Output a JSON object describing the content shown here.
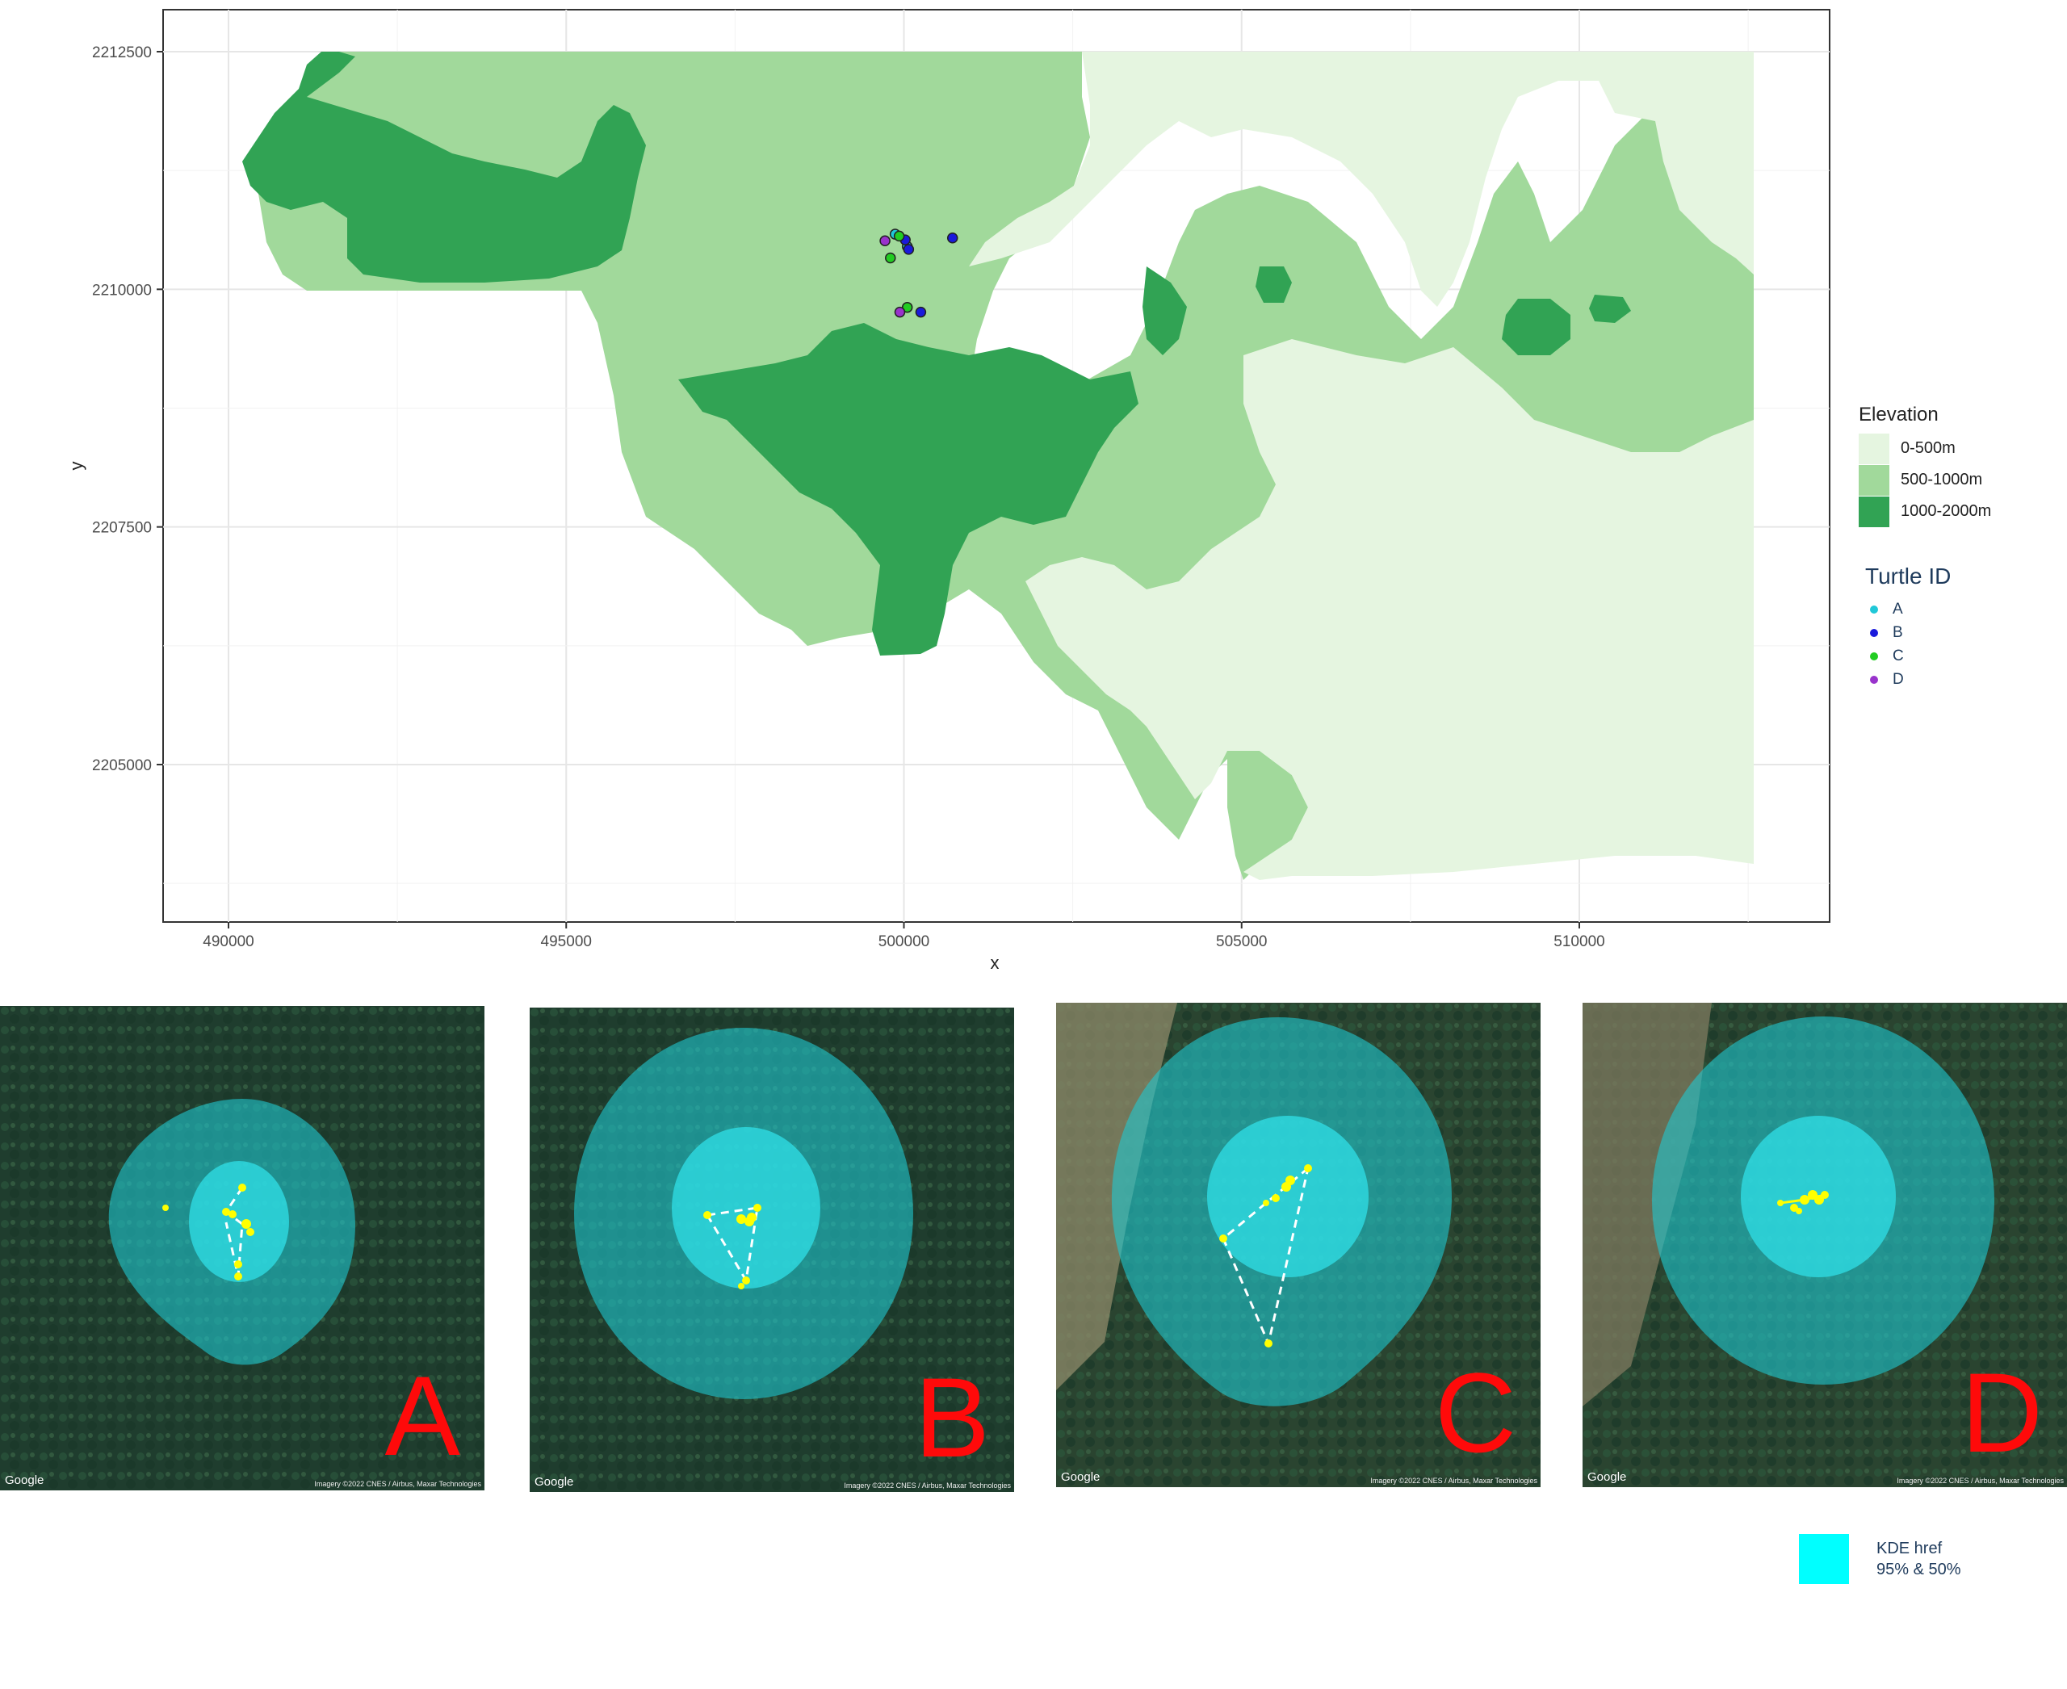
{
  "map": {
    "x_axis_title": "x",
    "y_axis_title": "y",
    "x_ticks": [
      "490000",
      "495000",
      "500000",
      "505000",
      "510000"
    ],
    "y_ticks": [
      "2212500",
      "2210000",
      "2207500",
      "2205000"
    ],
    "x_range": [
      488900,
      513500
    ],
    "y_range": [
      2203250,
      2213000
    ]
  },
  "elevation_legend": {
    "title": "Elevation",
    "items": [
      {
        "label": "0-500m",
        "color": "#e5f5e0"
      },
      {
        "label": "500-1000m",
        "color": "#a1d99b"
      },
      {
        "label": "1000-2000m",
        "color": "#31a354"
      }
    ]
  },
  "turtle_legend": {
    "title": "Turtle ID",
    "items": [
      {
        "label": "A",
        "color": "#20c8d8"
      },
      {
        "label": "B",
        "color": "#1a1adc"
      },
      {
        "label": "C",
        "color": "#22cc22"
      },
      {
        "label": "D",
        "color": "#9933cc"
      }
    ]
  },
  "turtle_points": [
    {
      "id": "A",
      "x": 499870,
      "y": 2210580
    },
    {
      "id": "A",
      "x": 500050,
      "y": 2210450
    },
    {
      "id": "B",
      "x": 500020,
      "y": 2210520
    },
    {
      "id": "B",
      "x": 500070,
      "y": 2210420
    },
    {
      "id": "B",
      "x": 500720,
      "y": 2210540
    },
    {
      "id": "B",
      "x": 500250,
      "y": 2209760
    },
    {
      "id": "C",
      "x": 499930,
      "y": 2210560
    },
    {
      "id": "C",
      "x": 499800,
      "y": 2210330
    },
    {
      "id": "C",
      "x": 500050,
      "y": 2209810
    },
    {
      "id": "D",
      "x": 499720,
      "y": 2210510
    },
    {
      "id": "D",
      "x": 499940,
      "y": 2209760
    }
  ],
  "panels": [
    {
      "letter": "A",
      "google": "Google",
      "credit": "Imagery ©2022 CNES / Airbus, Maxar Technologies"
    },
    {
      "letter": "B",
      "google": "Google",
      "credit": "Imagery ©2022 CNES / Airbus, Maxar Technologies"
    },
    {
      "letter": "C",
      "google": "Google",
      "credit": "Imagery ©2022 CNES / Airbus, Maxar Technologies"
    },
    {
      "letter": "D",
      "google": "Google",
      "credit": "Imagery ©2022 CNES / Airbus, Maxar Technologies"
    }
  ],
  "kde_legend": {
    "line1": "KDE href",
    "line2": "95% & 50%",
    "color": "#00ffff"
  }
}
